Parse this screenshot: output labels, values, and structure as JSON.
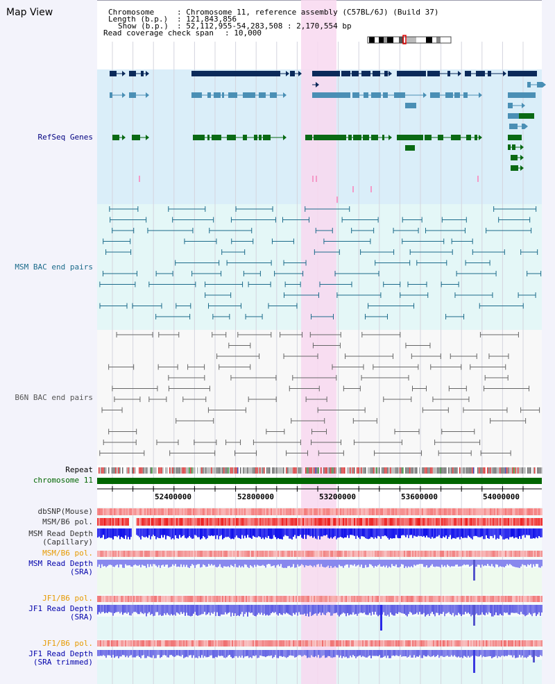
{
  "map_title": "Map View",
  "info": {
    "chromosome_key": "Chromosome",
    "chromosome_val": ": Chromosome 11, reference assembly (C57BL/6J) (Build 37)",
    "length_key": "Length (b.p.)",
    "length_val": ": 121,843,856",
    "show_key": "Show (b.p.)",
    "show_val": ": 52,112,955-54,283,508 : 2,170,554 bp",
    "coverage_key": "Read coverage check span",
    "coverage_val": ": 10,000"
  },
  "tracks": {
    "refseq": {
      "label": "RefSeq Genes",
      "color": "#000080"
    },
    "msm_bac": {
      "label": "MSM BAC end pairs",
      "color": "#1a6a8a"
    },
    "b6n_bac": {
      "label": "B6N BAC end pairs",
      "color": "#555555"
    },
    "repeat": {
      "label": "Repeat",
      "color": "#000000"
    },
    "chromosome": {
      "label": "chromosome 11",
      "color": "#006600"
    },
    "dbsnp": {
      "label": "dbSNP(Mouse)",
      "color": "#333333"
    },
    "msm_b6_pol_1": {
      "label": "MSM/B6 pol.",
      "color": "#333333"
    },
    "msm_depth_cap": {
      "label": "MSM Read Depth\n(Capillary)",
      "color": "#333333"
    },
    "msm_b6_pol_2": {
      "label": "MSM/B6 pol.",
      "color": "#e69a00"
    },
    "msm_depth_sra": {
      "label": "MSM Read Depth\n(SRA)",
      "color": "#0000aa"
    },
    "jf1_b6_pol_1": {
      "label": "JF1/B6 pol.",
      "color": "#e69a00"
    },
    "jf1_depth_sra": {
      "label": "JF1 Read Depth\n(SRA)",
      "color": "#0000aa"
    },
    "jf1_b6_pol_2": {
      "label": "JF1/B6 pol.",
      "color": "#e69a00"
    },
    "jf1_depth_trim": {
      "label": "JF1 Read Depth\n(SRA trimmed)",
      "color": "#0000aa"
    }
  },
  "axis": {
    "ticks": [
      "52400000",
      "52800000",
      "53200000",
      "53600000",
      "54000000"
    ]
  },
  "colors": {
    "refseq_bg": "#daeef9",
    "msm_bg": "#e4f7f7",
    "b6n_bg": "#f8f8f8",
    "highlight": "#f8d8f0",
    "gene_navy": "#0b2a5a",
    "gene_teal": "#4a8fb5",
    "gene_green": "#0a6a14",
    "snp_pink": "#f08a8a",
    "pol_red": "#e83030",
    "depth_blue": "#2a2ae8",
    "depth_light": "#8888ee"
  }
}
